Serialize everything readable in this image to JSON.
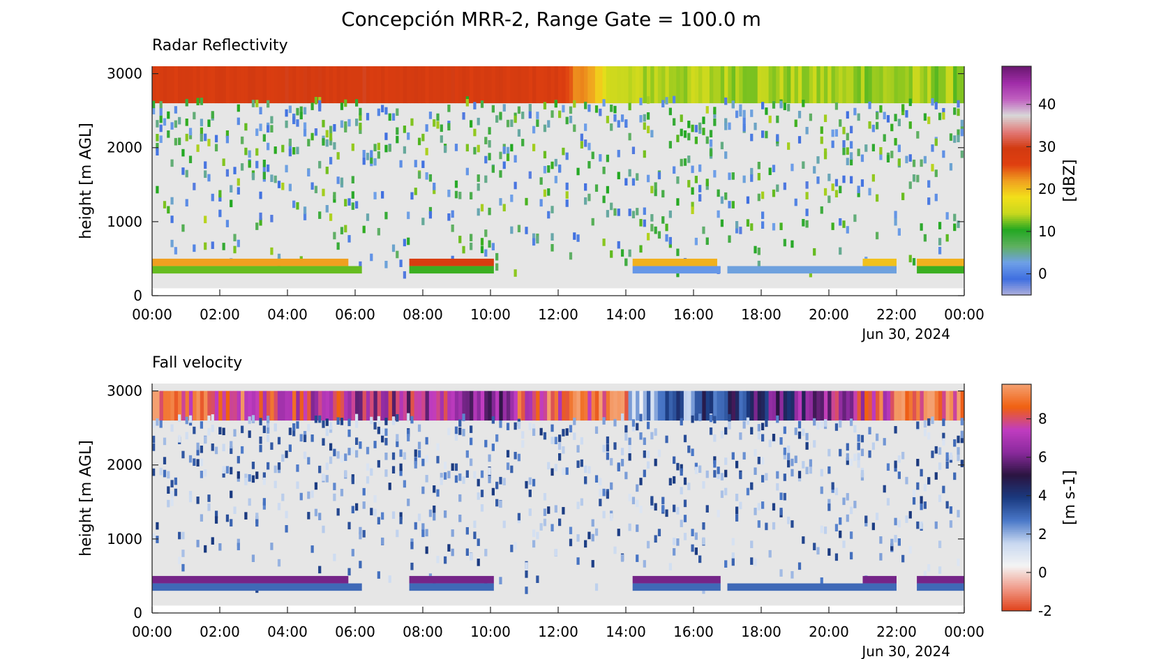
{
  "figure": {
    "title": "Concepción MRR-2, Range Gate = 100.0 m"
  },
  "chart_data": [
    {
      "type": "heatmap",
      "title": "Radar Reflectivity",
      "ylabel": "height [m AGL]",
      "date_label": "Jun 30, 2024",
      "colorbar_label": "[dBZ]",
      "colorbar_ticks": [
        "0",
        "10",
        "20",
        "30",
        "40"
      ],
      "colorbar_tick_values": [
        0,
        10,
        20,
        30,
        40
      ],
      "colorbar_range": [
        -5,
        49
      ],
      "colorscale": [
        "#b0b0dc",
        "#3f6fe0",
        "#6fa0e8",
        "#5fb05f",
        "#22a822",
        "#c8d81e",
        "#f2e01a",
        "#f0a020",
        "#e04010",
        "#d23a10",
        "#e27a78",
        "#d8d8d8",
        "#c060c0",
        "#a02ca8",
        "#6a1870"
      ],
      "x_ticks": [
        "00:00",
        "02:00",
        "04:00",
        "06:00",
        "08:00",
        "10:00",
        "12:00",
        "14:00",
        "16:00",
        "18:00",
        "20:00",
        "22:00",
        "00:00"
      ],
      "x_tick_values_h": [
        0,
        2,
        4,
        6,
        8,
        10,
        12,
        14,
        16,
        18,
        20,
        22,
        24
      ],
      "x_range_h": [
        0,
        24
      ],
      "y_ticks": [
        "0",
        "1000",
        "2000",
        "3000"
      ],
      "y_tick_values": [
        0,
        1000,
        2000,
        3000
      ],
      "y_range": [
        0,
        3100
      ],
      "layers": [
        {
          "name": "top-band",
          "x_range_h": [
            0,
            24
          ],
          "y_range": [
            2600,
            3100
          ],
          "values_by_hour": [
            {
              "x": 0,
              "value": 28
            },
            {
              "x": 6,
              "value": 29
            },
            {
              "x": 12,
              "value": 28
            },
            {
              "x": 13.8,
              "value": 14
            },
            {
              "x": 24,
              "value": 13
            }
          ]
        },
        {
          "name": "bright-band-upper",
          "x_range_h": [
            0,
            24
          ],
          "y_range": [
            400,
            500
          ],
          "segments": [
            {
              "x": [
                0,
                5.8
              ],
              "value": 22
            },
            {
              "x": [
                7.6,
                10.1
              ],
              "value": 28
            },
            {
              "x": [
                14.2,
                16.7
              ],
              "value": 21
            },
            {
              "x": [
                21,
                22
              ],
              "value": 20
            },
            {
              "x": [
                22.6,
                24
              ],
              "value": 21
            }
          ]
        },
        {
          "name": "bright-band-lower",
          "x_range_h": [
            0,
            24
          ],
          "y_range": [
            300,
            400
          ],
          "segments": [
            {
              "x": [
                0,
                6.2
              ],
              "value": 12
            },
            {
              "x": [
                7.6,
                10.1
              ],
              "value": 11
            },
            {
              "x": [
                14.2,
                16.8
              ],
              "value": 2
            },
            {
              "x": [
                17,
                22
              ],
              "value": 3
            },
            {
              "x": [
                22.6,
                24
              ],
              "value": 11
            }
          ]
        }
      ]
    },
    {
      "type": "heatmap",
      "title": "Fall velocity",
      "ylabel": "height [m AGL]",
      "date_label": "Jun 30, 2024",
      "colorbar_label": "[m s-1]",
      "colorbar_ticks": [
        "-2",
        "0",
        "2",
        "4",
        "6",
        "8"
      ],
      "colorbar_tick_values": [
        -2,
        0,
        2,
        4,
        6,
        8
      ],
      "colorbar_range": [
        -2,
        9.8
      ],
      "colorscale": [
        "#e04018",
        "#f09a88",
        "#f4f4f4",
        "#c8d8f0",
        "#4a78c8",
        "#1a3a80",
        "#2a1440",
        "#8a2a9c",
        "#c03cc0",
        "#f06010",
        "#f4a070"
      ],
      "x_ticks": [
        "00:00",
        "02:00",
        "04:00",
        "06:00",
        "08:00",
        "10:00",
        "12:00",
        "14:00",
        "16:00",
        "18:00",
        "20:00",
        "22:00",
        "00:00"
      ],
      "x_tick_values_h": [
        0,
        2,
        4,
        6,
        8,
        10,
        12,
        14,
        16,
        18,
        20,
        22,
        24
      ],
      "x_range_h": [
        0,
        24
      ],
      "y_ticks": [
        "0",
        "1000",
        "2000",
        "3000"
      ],
      "y_tick_values": [
        0,
        1000,
        2000,
        3000
      ],
      "y_range": [
        0,
        3100
      ],
      "layers": [
        {
          "name": "top-band",
          "x_range_h": [
            0,
            24
          ],
          "y_range": [
            2600,
            3000
          ],
          "values_by_hour": [
            {
              "x": 0,
              "value": 9
            },
            {
              "x": 2.5,
              "value": 8.5
            },
            {
              "x": 6,
              "value": 7
            },
            {
              "x": 10.5,
              "value": 6.5
            },
            {
              "x": 11,
              "value": 8.3
            },
            {
              "x": 14,
              "value": 9
            },
            {
              "x": 14.1,
              "value": 1.5
            },
            {
              "x": 22.8,
              "value": 9
            },
            {
              "x": 24,
              "value": 9
            }
          ]
        },
        {
          "name": "bright-band-upper",
          "x_range_h": [
            0,
            24
          ],
          "y_range": [
            400,
            500
          ],
          "segments": [
            {
              "x": [
                0,
                5.8
              ],
              "value": 6
            },
            {
              "x": [
                7.6,
                10.1
              ],
              "value": 6
            },
            {
              "x": [
                14.2,
                16.8
              ],
              "value": 6
            },
            {
              "x": [
                21,
                22
              ],
              "value": 6
            },
            {
              "x": [
                22.6,
                24
              ],
              "value": 6
            }
          ]
        },
        {
          "name": "bright-band-lower",
          "x_range_h": [
            0,
            24
          ],
          "y_range": [
            300,
            400
          ],
          "segments": [
            {
              "x": [
                0,
                6.2
              ],
              "value": 3
            },
            {
              "x": [
                7.6,
                10.1
              ],
              "value": 3
            },
            {
              "x": [
                14.2,
                16.8
              ],
              "value": 3
            },
            {
              "x": [
                17,
                22
              ],
              "value": 3
            },
            {
              "x": [
                22.6,
                24
              ],
              "value": 3
            }
          ]
        }
      ]
    }
  ]
}
